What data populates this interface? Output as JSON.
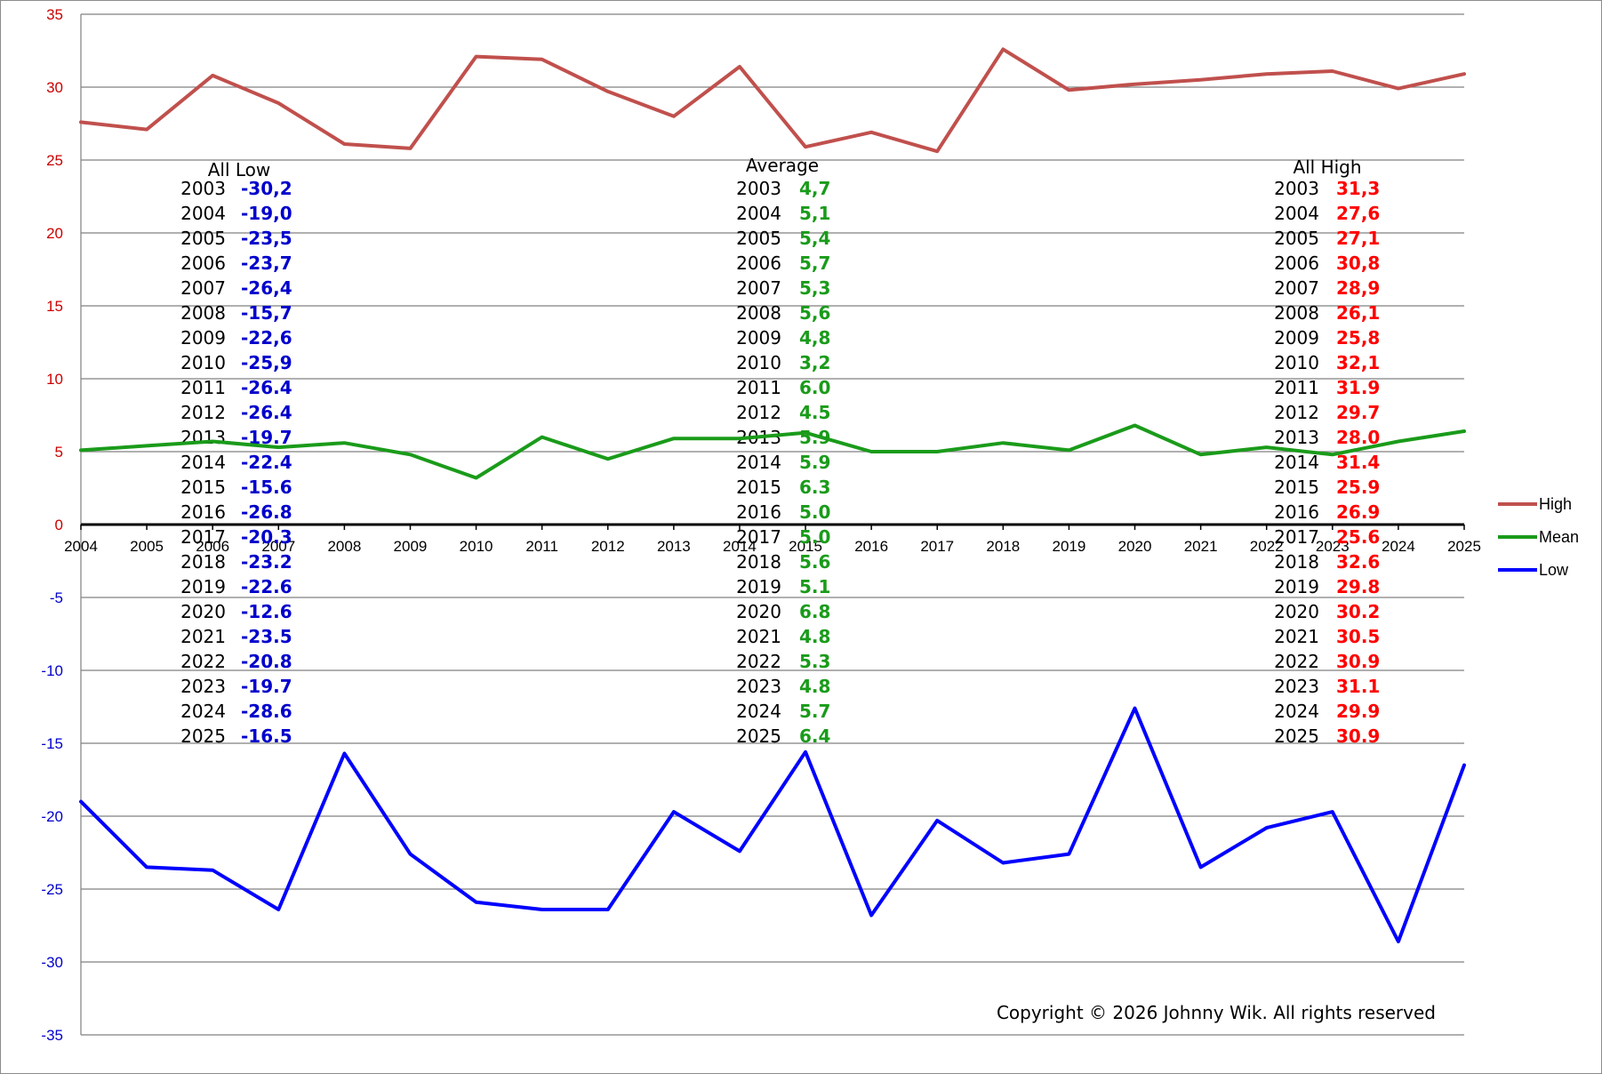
{
  "chart_data": {
    "type": "line",
    "x": [
      2004,
      2005,
      2006,
      2007,
      2008,
      2009,
      2010,
      2011,
      2012,
      2013,
      2014,
      2015,
      2016,
      2017,
      2018,
      2019,
      2020,
      2021,
      2022,
      2023,
      2024,
      2025
    ],
    "xlim": [
      2004,
      2025
    ],
    "ylim": [
      -35,
      35
    ],
    "yticks": [
      35,
      30,
      25,
      20,
      15,
      10,
      5,
      0,
      -5,
      -10,
      -15,
      -20,
      -25,
      -30,
      -35
    ],
    "grid": true,
    "legend_position": "right",
    "series": [
      {
        "name": "High",
        "color": "#c0504d",
        "values": [
          27.6,
          27.1,
          30.8,
          28.9,
          26.1,
          25.8,
          32.1,
          31.9,
          29.7,
          28.0,
          31.4,
          25.9,
          26.9,
          25.6,
          32.6,
          29.8,
          30.2,
          30.5,
          30.9,
          31.1,
          29.9,
          30.9
        ]
      },
      {
        "name": "Mean",
        "color": "#1a9b1a",
        "values": [
          5.1,
          5.4,
          5.7,
          5.3,
          5.6,
          4.8,
          3.2,
          6.0,
          4.5,
          5.9,
          5.9,
          6.3,
          5.0,
          5.0,
          5.6,
          5.1,
          6.8,
          4.8,
          5.3,
          4.8,
          5.7,
          6.4
        ]
      },
      {
        "name": "Low",
        "color": "#0000ff",
        "values": [
          -19.0,
          -23.5,
          -23.7,
          -26.4,
          -15.7,
          -22.6,
          -25.9,
          -26.4,
          -26.4,
          -19.7,
          -22.4,
          -15.6,
          -26.8,
          -20.3,
          -23.2,
          -22.6,
          -12.6,
          -23.5,
          -20.8,
          -19.7,
          -28.6,
          -16.5
        ]
      }
    ],
    "annotations": {
      "low_table": {
        "title": "All  Low",
        "color": "#0000cc",
        "rows": [
          [
            "2003",
            "-30,2"
          ],
          [
            "2004",
            "-19,0"
          ],
          [
            "2005",
            "-23,5"
          ],
          [
            "2006",
            "-23,7"
          ],
          [
            "2007",
            "-26,4"
          ],
          [
            "2008",
            "-15,7"
          ],
          [
            "2009",
            "-22,6"
          ],
          [
            "2010",
            "-25,9"
          ],
          [
            "2011",
            "-26.4"
          ],
          [
            "2012",
            "-26.4"
          ],
          [
            "2013",
            "-19.7"
          ],
          [
            "2014",
            "-22.4"
          ],
          [
            "2015",
            "-15.6"
          ],
          [
            "2016",
            "-26.8"
          ],
          [
            "2017",
            "-20.3"
          ],
          [
            "2018",
            "-23.2"
          ],
          [
            "2019",
            "-22.6"
          ],
          [
            "2020",
            "-12.6"
          ],
          [
            "2021",
            "-23.5"
          ],
          [
            "2022",
            "-20.8"
          ],
          [
            "2023",
            "-19.7"
          ],
          [
            "2024",
            "-28.6"
          ],
          [
            "2025",
            "-16.5"
          ]
        ]
      },
      "mean_table": {
        "title": "Average",
        "color": "#1a9b1a",
        "rows": [
          [
            "2003",
            "4,7"
          ],
          [
            "2004",
            "5,1"
          ],
          [
            "2005",
            "5,4"
          ],
          [
            "2006",
            "5,7"
          ],
          [
            "2007",
            "5,3"
          ],
          [
            "2008",
            "5,6"
          ],
          [
            "2009",
            "4,8"
          ],
          [
            "2010",
            "3,2"
          ],
          [
            "2011",
            "6.0"
          ],
          [
            "2012",
            "4.5"
          ],
          [
            "2013",
            "5.9"
          ],
          [
            "2014",
            "5.9"
          ],
          [
            "2015",
            "6.3"
          ],
          [
            "2016",
            "5.0"
          ],
          [
            "2017",
            "5.0"
          ],
          [
            "2018",
            "5.6"
          ],
          [
            "2019",
            "5.1"
          ],
          [
            "2020",
            "6.8"
          ],
          [
            "2021",
            "4.8"
          ],
          [
            "2022",
            "5.3"
          ],
          [
            "2023",
            "4.8"
          ],
          [
            "2024",
            "5.7"
          ],
          [
            "2025",
            "6.4"
          ]
        ]
      },
      "high_table": {
        "title": "All High",
        "color": "#ff0000",
        "rows": [
          [
            "2003",
            "31,3"
          ],
          [
            "2004",
            "27,6"
          ],
          [
            "2005",
            "27,1"
          ],
          [
            "2006",
            "30,8"
          ],
          [
            "2007",
            "28,9"
          ],
          [
            "2008",
            "26,1"
          ],
          [
            "2009",
            "25,8"
          ],
          [
            "2010",
            "32,1"
          ],
          [
            "2011",
            "31.9"
          ],
          [
            "2012",
            "29.7"
          ],
          [
            "2013",
            "28.0"
          ],
          [
            "2014",
            "31.4"
          ],
          [
            "2015",
            "25.9"
          ],
          [
            "2016",
            "26.9"
          ],
          [
            "2017",
            "25.6"
          ],
          [
            "2018",
            "32.6"
          ],
          [
            "2019",
            "29.8"
          ],
          [
            "2020",
            "30.2"
          ],
          [
            "2021",
            "30.5"
          ],
          [
            "2022",
            "30.9"
          ],
          [
            "2023",
            "31.1"
          ],
          [
            "2024",
            "29.9"
          ],
          [
            "2025",
            "30.9"
          ]
        ]
      }
    },
    "copyright": "Copyright © 2026 Johnny Wik. All rights reserved"
  }
}
